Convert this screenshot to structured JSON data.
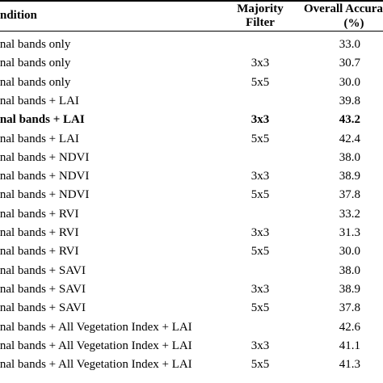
{
  "header": {
    "condition": "ndition",
    "majority_filter_line1": "Majority",
    "majority_filter_line2": "Filter",
    "accuracy_line1": "Overall Accura",
    "accuracy_line2": "(%)"
  },
  "rows": [
    {
      "condition": "iginal bands only",
      "filter": "",
      "accuracy": "33.0",
      "bold": false
    },
    {
      "condition": "iginal bands only",
      "filter": "3x3",
      "accuracy": "30.7",
      "bold": false
    },
    {
      "condition": "iginal bands only",
      "filter": "5x5",
      "accuracy": "30.0",
      "bold": false
    },
    {
      "condition": "iginal bands + LAI",
      "filter": "",
      "accuracy": "39.8",
      "bold": false
    },
    {
      "condition": "iginal bands + LAI",
      "filter": "3x3",
      "accuracy": "43.2",
      "bold": true
    },
    {
      "condition": "iginal bands + LAI",
      "filter": "5x5",
      "accuracy": "42.4",
      "bold": false
    },
    {
      "condition": "iginal bands + NDVI",
      "filter": "",
      "accuracy": "38.0",
      "bold": false
    },
    {
      "condition": "iginal bands + NDVI",
      "filter": "3x3",
      "accuracy": "38.9",
      "bold": false
    },
    {
      "condition": "iginal bands + NDVI",
      "filter": "5x5",
      "accuracy": "37.8",
      "bold": false
    },
    {
      "condition": "iginal bands + RVI",
      "filter": "",
      "accuracy": "33.2",
      "bold": false
    },
    {
      "condition": "iginal bands + RVI",
      "filter": "3x3",
      "accuracy": "31.3",
      "bold": false
    },
    {
      "condition": "iginal bands + RVI",
      "filter": "5x5",
      "accuracy": "30.0",
      "bold": false
    },
    {
      "condition": "iginal bands + SAVI",
      "filter": "",
      "accuracy": "38.0",
      "bold": false
    },
    {
      "condition": "iginal bands + SAVI",
      "filter": "3x3",
      "accuracy": "38.9",
      "bold": false
    },
    {
      "condition": "iginal bands + SAVI",
      "filter": "5x5",
      "accuracy": "37.8",
      "bold": false
    },
    {
      "condition": "iginal bands + All Vegetation Index + LAI",
      "filter": "",
      "accuracy": "42.6",
      "bold": false
    },
    {
      "condition": "iginal bands + All Vegetation Index + LAI",
      "filter": "3x3",
      "accuracy": "41.1",
      "bold": false
    },
    {
      "condition": "iginal bands + All Vegetation Index + LAI",
      "filter": "5x5",
      "accuracy": "41.3",
      "bold": false
    }
  ]
}
